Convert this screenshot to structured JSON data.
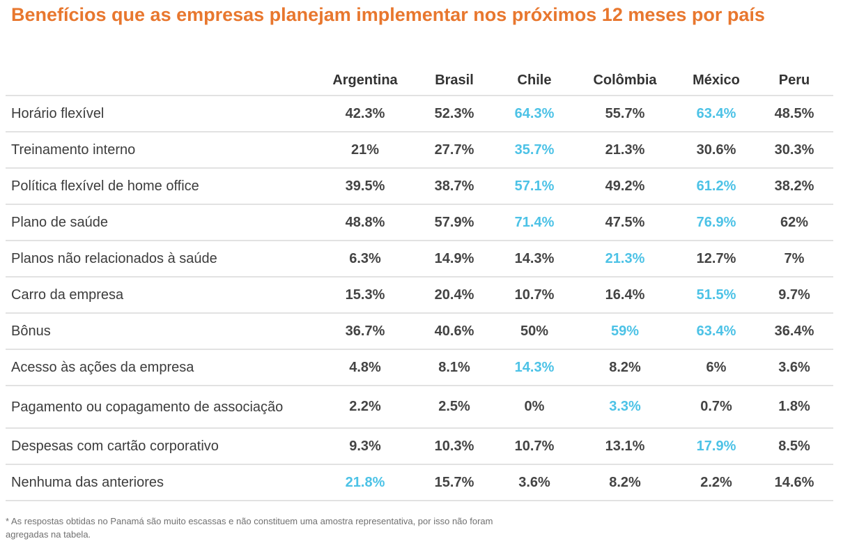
{
  "chart_data": {
    "type": "table",
    "title": "Benefícios que as empresas planejam implementar nos próximos 12 meses por país",
    "columns": [
      "Argentina",
      "Brasil",
      "Chile",
      "Colômbia",
      "México",
      "Peru"
    ],
    "rows": [
      {
        "label": "Horário flexível",
        "values": [
          "42.3%",
          "52.3%",
          "64.3%",
          "55.7%",
          "63.4%",
          "48.5%"
        ],
        "highlight": [
          false,
          false,
          true,
          false,
          true,
          false
        ]
      },
      {
        "label": "Treinamento interno",
        "values": [
          "21%",
          "27.7%",
          "35.7%",
          "21.3%",
          "30.6%",
          "30.3%"
        ],
        "highlight": [
          false,
          false,
          true,
          false,
          false,
          false
        ]
      },
      {
        "label": "Política flexível de home office",
        "values": [
          "39.5%",
          "38.7%",
          "57.1%",
          "49.2%",
          "61.2%",
          "38.2%"
        ],
        "highlight": [
          false,
          false,
          true,
          false,
          true,
          false
        ]
      },
      {
        "label": "Plano de saúde",
        "values": [
          "48.8%",
          "57.9%",
          "71.4%",
          "47.5%",
          "76.9%",
          "62%"
        ],
        "highlight": [
          false,
          false,
          true,
          false,
          true,
          false
        ]
      },
      {
        "label": "Planos não relacionados à saúde",
        "values": [
          "6.3%",
          "14.9%",
          "14.3%",
          "21.3%",
          "12.7%",
          "7%"
        ],
        "highlight": [
          false,
          false,
          false,
          true,
          false,
          false
        ]
      },
      {
        "label": "Carro da empresa",
        "values": [
          "15.3%",
          "20.4%",
          "10.7%",
          "16.4%",
          "51.5%",
          "9.7%"
        ],
        "highlight": [
          false,
          false,
          false,
          false,
          true,
          false
        ]
      },
      {
        "label": "Bônus",
        "values": [
          "36.7%",
          "40.6%",
          "50%",
          "59%",
          "63.4%",
          "36.4%"
        ],
        "highlight": [
          false,
          false,
          false,
          true,
          true,
          false
        ]
      },
      {
        "label": "Acesso às ações da empresa",
        "values": [
          "4.8%",
          "8.1%",
          "14.3%",
          "8.2%",
          "6%",
          "3.6%"
        ],
        "highlight": [
          false,
          false,
          true,
          false,
          false,
          false
        ]
      },
      {
        "label": "Pagamento ou copagamento de associação",
        "values": [
          "2.2%",
          "2.5%",
          "0%",
          "3.3%",
          "0.7%",
          "1.8%"
        ],
        "highlight": [
          false,
          false,
          false,
          true,
          false,
          false
        ]
      },
      {
        "label": "Despesas com cartão corporativo",
        "values": [
          "9.3%",
          "10.3%",
          "10.7%",
          "13.1%",
          "17.9%",
          "8.5%"
        ],
        "highlight": [
          false,
          false,
          false,
          false,
          true,
          false
        ]
      },
      {
        "label": "Nenhuma das anteriores",
        "values": [
          "21.8%",
          "15.7%",
          "3.6%",
          "8.2%",
          "2.2%",
          "14.6%"
        ],
        "highlight": [
          true,
          false,
          false,
          false,
          false,
          false
        ]
      }
    ],
    "colors": {
      "title": "#e8772e",
      "highlight": "#4cc2e6",
      "normal": "#444444"
    }
  },
  "footnote": "* As respostas obtidas no Panamá são muito escassas e não constituem uma amostra representativa, por isso não foram agregadas na tabela."
}
